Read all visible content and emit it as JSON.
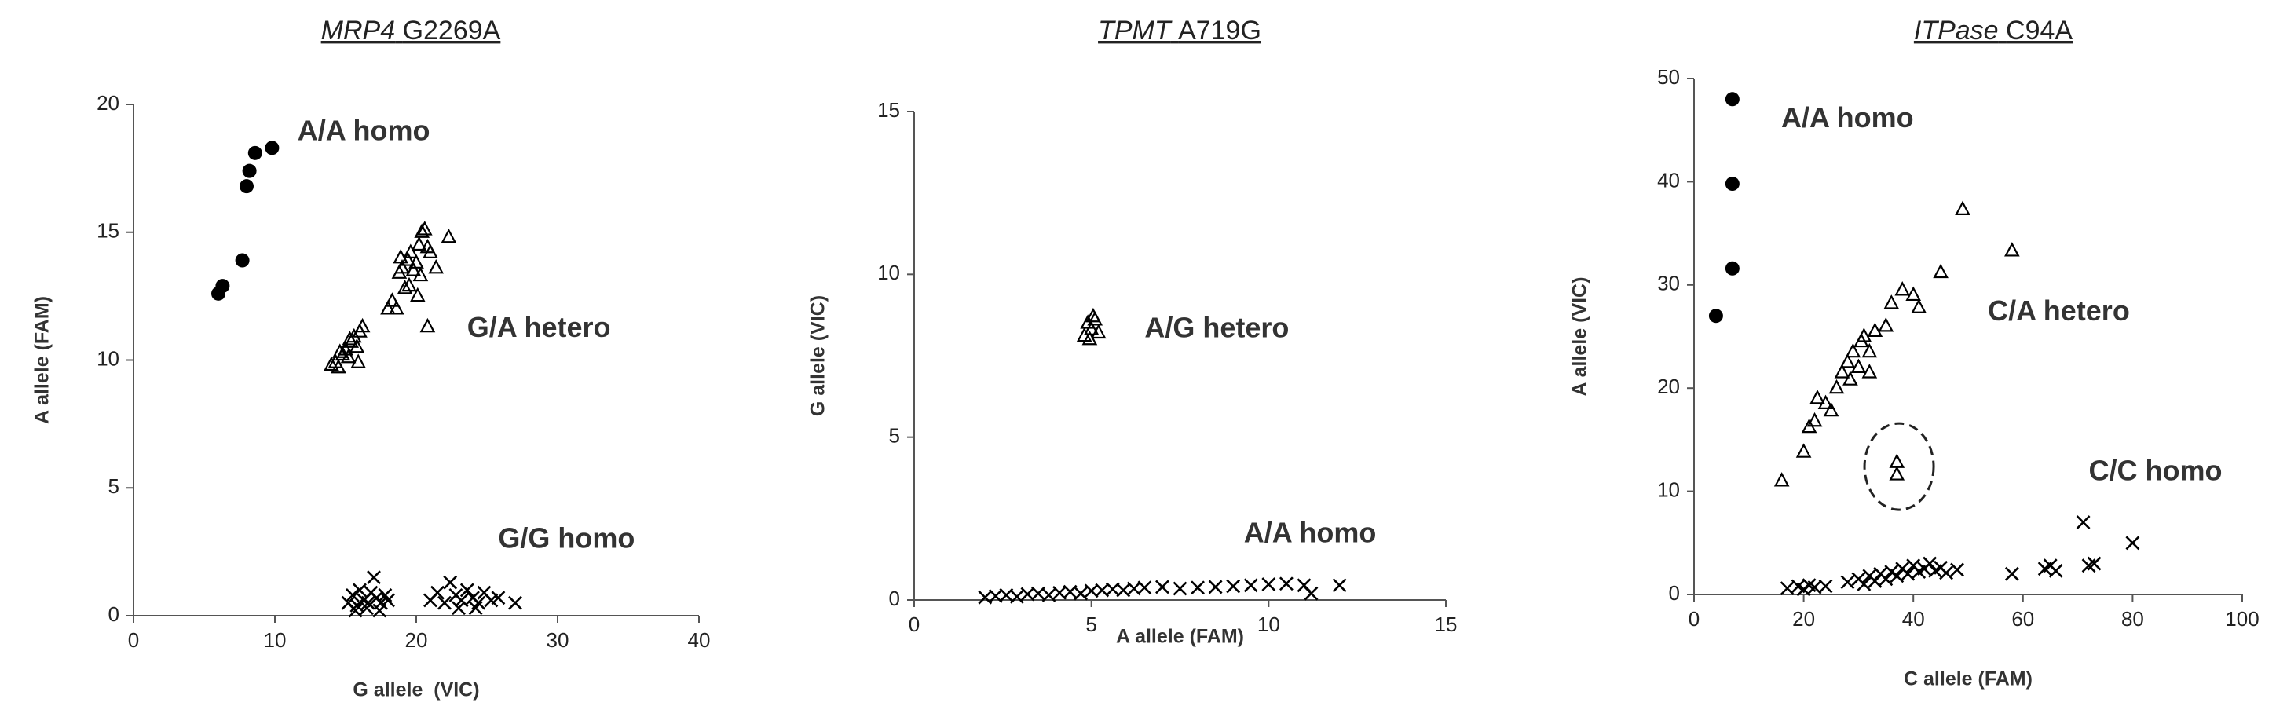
{
  "chart_data": [
    {
      "type": "scatter",
      "title": [
        "MRP4",
        "G2269A"
      ],
      "x_label": "G allele  (VIC)",
      "y_label": "A allele (FAM)",
      "xlim": [
        0,
        40
      ],
      "ylim": [
        0,
        20
      ],
      "xticks": [
        0,
        10,
        20,
        30,
        40
      ],
      "yticks": [
        0,
        5,
        10,
        15,
        20
      ],
      "series": [
        {
          "name": "A/A homo",
          "marker": "circle",
          "color": "#000000",
          "x": [
            6,
            6.3,
            7.7,
            8,
            8.2,
            8.6,
            9.8
          ],
          "y": [
            12.6,
            12.9,
            13.9,
            16.8,
            17.4,
            18.1,
            18.3
          ]
        },
        {
          "name": "G/A hetero",
          "marker": "triangle",
          "color": "#000000",
          "x": [
            14,
            14.3,
            14.5,
            14.8,
            15,
            15.2,
            15.4,
            15.6,
            15.8,
            16,
            16.2,
            15.9,
            14.6,
            15.3,
            18,
            18.3,
            18.6,
            18.8,
            19,
            19.2,
            19.4,
            19.6,
            19.8,
            20,
            20.2,
            20.4,
            20.6,
            20.8,
            21,
            19.5,
            20.3,
            21.4,
            22.3,
            20.8,
            18.9,
            20.1
          ],
          "y": [
            9.8,
            9.9,
            9.7,
            10.2,
            10.4,
            10.1,
            10.7,
            10.9,
            10.5,
            11.1,
            11.3,
            9.9,
            10.3,
            10.8,
            12,
            12.3,
            12,
            13.4,
            13.6,
            12.8,
            13.9,
            14.2,
            13.5,
            13.8,
            14.5,
            15,
            15.1,
            14.4,
            14.2,
            12.9,
            13.3,
            13.6,
            14.8,
            11.3,
            14,
            12.5
          ]
        },
        {
          "name": "G/G homo",
          "marker": "cross",
          "color": "#000000",
          "x": [
            15.2,
            15.5,
            15.8,
            16,
            16.3,
            16.5,
            16.8,
            17,
            17.2,
            17.5,
            17.8,
            18,
            15.7,
            16.6,
            17.4,
            21,
            21.5,
            22,
            22.4,
            22.8,
            23.2,
            23.6,
            24,
            24.4,
            24.8,
            25.3,
            25.8,
            27,
            23,
            24.2
          ],
          "y": [
            0.5,
            0.8,
            0.4,
            1,
            0.6,
            0.3,
            0.9,
            1.5,
            0.7,
            0.5,
            0.8,
            0.6,
            0.2,
            0.5,
            0.2,
            0.6,
            0.9,
            0.5,
            1.3,
            0.8,
            0.6,
            1,
            0.7,
            0.5,
            0.9,
            0.6,
            0.7,
            0.5,
            0.3,
            0.3
          ]
        }
      ]
    },
    {
      "type": "scatter",
      "title": [
        "TPMT",
        "A719G"
      ],
      "x_label": "A allele (FAM)",
      "y_label": "G allele (VIC)",
      "xlim": [
        0,
        15
      ],
      "ylim": [
        0,
        15
      ],
      "xticks": [
        0,
        5,
        10,
        15
      ],
      "yticks": [
        0,
        5,
        10,
        15
      ],
      "series": [
        {
          "name": "A/G hetero",
          "marker": "triangle",
          "color": "#000000",
          "x": [
            4.8,
            4.9,
            5,
            5.1,
            5.2,
            4.95,
            5.05
          ],
          "y": [
            8.1,
            8.5,
            8.3,
            8.6,
            8.2,
            8,
            8.7
          ]
        },
        {
          "name": "A/A homo",
          "marker": "cross",
          "color": "#000000",
          "x": [
            2,
            2.3,
            2.6,
            2.9,
            3.2,
            3.5,
            3.8,
            4.1,
            4.4,
            4.7,
            5,
            5.3,
            5.6,
            5.9,
            6.2,
            6.5,
            7,
            7.5,
            8,
            8.5,
            9,
            9.5,
            10,
            10.5,
            11,
            11.2,
            12
          ],
          "y": [
            0.08,
            0.12,
            0.15,
            0.1,
            0.18,
            0.2,
            0.15,
            0.22,
            0.25,
            0.2,
            0.28,
            0.3,
            0.33,
            0.3,
            0.35,
            0.38,
            0.4,
            0.35,
            0.38,
            0.4,
            0.42,
            0.45,
            0.48,
            0.5,
            0.45,
            0.2,
            0.45
          ]
        }
      ]
    },
    {
      "type": "scatter",
      "title": [
        "ITPase",
        "C94A"
      ],
      "x_label": "C allele (FAM)",
      "y_label": "A allele (VIC)",
      "xlim": [
        0,
        100
      ],
      "ylim": [
        0,
        50
      ],
      "xticks": [
        0,
        20,
        40,
        60,
        80,
        100
      ],
      "yticks": [
        0,
        10,
        20,
        30,
        40,
        50
      ],
      "series": [
        {
          "name": "A/A homo",
          "marker": "circle",
          "color": "#000000",
          "x": [
            4,
            7,
            7,
            7
          ],
          "y": [
            27,
            31.6,
            39.8,
            48
          ]
        },
        {
          "name": "C/A hetero",
          "marker": "triangle",
          "color": "#000000",
          "x": [
            16,
            20,
            21,
            22,
            22.5,
            24,
            25,
            26,
            27,
            28,
            28.5,
            29,
            30,
            30.5,
            31,
            32,
            32,
            33,
            35,
            36,
            38,
            40,
            41,
            45,
            49,
            58,
            37,
            37
          ],
          "y": [
            11,
            13.8,
            16.2,
            16.8,
            19,
            18.5,
            17.8,
            20,
            21.5,
            22.5,
            20.8,
            23.5,
            22,
            24.5,
            25,
            23.5,
            21.5,
            25.5,
            26,
            28.2,
            29.5,
            29,
            27.8,
            31.2,
            37.3,
            33.3,
            12.8,
            11.6
          ]
        },
        {
          "name": "C/C homo",
          "marker": "cross",
          "color": "#000000",
          "x": [
            17,
            19,
            20,
            21,
            22,
            24,
            28,
            30,
            31,
            32,
            33,
            34,
            35,
            36,
            37,
            38,
            39,
            40,
            41,
            42,
            43,
            44,
            45,
            46,
            48,
            58,
            64,
            65,
            66,
            71,
            72,
            73,
            80
          ],
          "y": [
            0.6,
            0.8,
            0.5,
            0.9,
            0.7,
            0.8,
            1.2,
            1.5,
            1,
            1.8,
            1.3,
            2,
            1.5,
            2.2,
            1.8,
            2.5,
            2,
            2.8,
            2.2,
            2.5,
            3,
            2.3,
            2.6,
            2.1,
            2.4,
            2,
            2.5,
            2.8,
            2.3,
            7,
            2.8,
            3,
            5
          ]
        }
      ]
    }
  ]
}
